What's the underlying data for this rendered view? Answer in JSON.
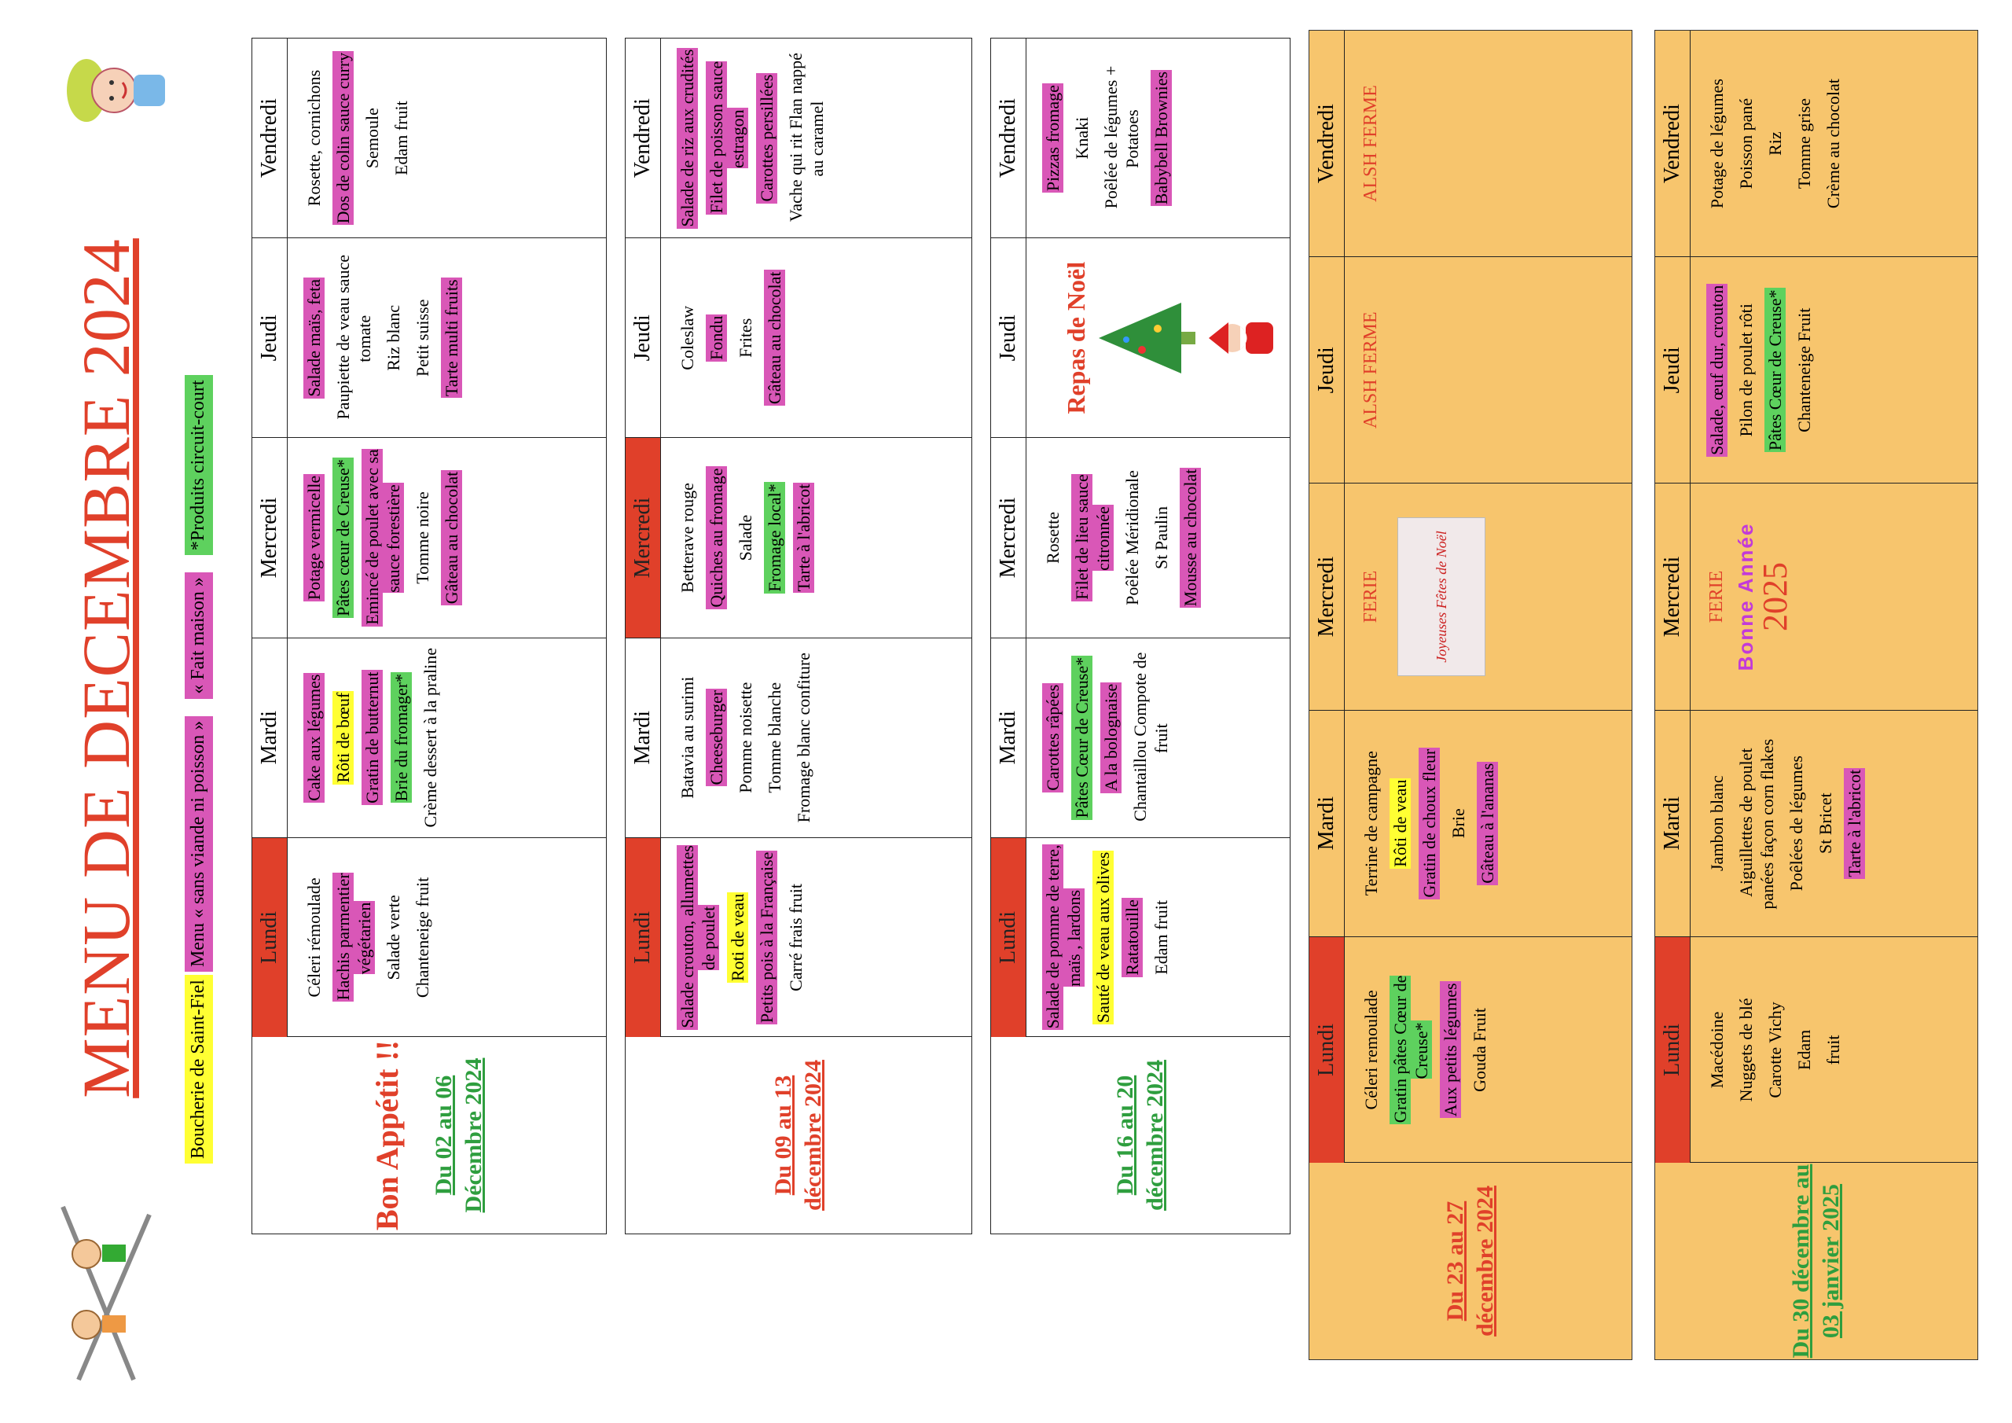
{
  "header": {
    "title": "MENU DE DECEMBRE 2024",
    "legend": [
      {
        "text": "Boucherie de Saint-Fiel",
        "color": "yellow"
      },
      {
        "text": "Menu « sans viande ni poisson »",
        "color": "pink"
      },
      {
        "text": "« Fait maison »",
        "color": "pink"
      },
      {
        "text": "*Produits circuit-court",
        "color": "green"
      }
    ],
    "bon_appetit": "Bon Appétit !!"
  },
  "days": [
    "Lundi",
    "Mardi",
    "Mercredi",
    "Jeudi",
    "Vendredi"
  ],
  "weeks": [
    {
      "dates": "Du 02 au 06 Décembre 2024",
      "color": "green",
      "lundi": [
        {
          "text": "Céleri rémoulade",
          "hl": ""
        },
        {
          "text": "Hachis parmentier végétarien",
          "hl": "pink"
        },
        {
          "text": "Salade verte",
          "hl": ""
        },
        {
          "text": "Chanteneige fruit",
          "hl": ""
        }
      ],
      "mardi": [
        {
          "text": "Cake aux légumes",
          "hl": "pink"
        },
        {
          "text": "Rôti de bœuf",
          "hl": "yellow"
        },
        {
          "text": "Gratin de butternut",
          "hl": "pink"
        },
        {
          "text": "Brie du fromager*",
          "hl": "green"
        },
        {
          "text": "Crème dessert à la praline",
          "hl": ""
        }
      ],
      "mercredi": [
        {
          "text": "Potage vermicelle",
          "hl": "pink"
        },
        {
          "text": "Pâtes cœur de Creuse*",
          "hl": "green"
        },
        {
          "text": "Emincé de poulet avec sa sauce forestière",
          "hl": "pink"
        },
        {
          "text": "Tomme noire",
          "hl": ""
        },
        {
          "text": "Gâteau au chocolat",
          "hl": "pink"
        }
      ],
      "jeudi": [
        {
          "text": "Salade maïs, feta",
          "hl": "pink"
        },
        {
          "text": "Paupiette de veau sauce tomate",
          "hl": ""
        },
        {
          "text": "Riz blanc",
          "hl": ""
        },
        {
          "text": "Petit suisse",
          "hl": ""
        },
        {
          "text": "Tarte multi fruits",
          "hl": "pink"
        }
      ],
      "vendredi": [
        {
          "text": "Rosette, cornichons",
          "hl": ""
        },
        {
          "text": "Dos de colin sauce curry",
          "hl": "pink"
        },
        {
          "text": "Semoule",
          "hl": ""
        },
        {
          "text": "Edam fruit",
          "hl": ""
        }
      ]
    },
    {
      "dates": "Du 09 au 13 décembre 2024",
      "color": "red",
      "lundi": [
        {
          "text": "Salade crouton, allumettes de poulet",
          "hl": "pink"
        },
        {
          "text": "Roti de veau",
          "hl": "yellow"
        },
        {
          "text": "Petits pois à la Française",
          "hl": "pink"
        },
        {
          "text": "Carré frais fruit",
          "hl": ""
        }
      ],
      "mardi": [
        {
          "text": "Batavia au surimi",
          "hl": ""
        },
        {
          "text": "Cheeseburger",
          "hl": "pink"
        },
        {
          "text": "Pomme noisette",
          "hl": ""
        },
        {
          "text": "Tomme blanche",
          "hl": ""
        },
        {
          "text": "Fromage blanc confiture",
          "hl": ""
        }
      ],
      "mercredi": [
        {
          "text": "Betterave rouge",
          "hl": ""
        },
        {
          "text": "Quiches au fromage",
          "hl": "pink"
        },
        {
          "text": "Salade",
          "hl": ""
        },
        {
          "text": "Fromage local*",
          "hl": "green"
        },
        {
          "text": "Tarte à l'abricot",
          "hl": "pink"
        }
      ],
      "jeudi": [
        {
          "text": "Coleslaw",
          "hl": ""
        },
        {
          "text": "Fondu",
          "hl": "pink"
        },
        {
          "text": "Frites",
          "hl": ""
        },
        {
          "text": "Gâteau au chocolat",
          "hl": "pink"
        }
      ],
      "vendredi": [
        {
          "text": "Salade de riz aux crudités",
          "hl": "pink"
        },
        {
          "text": "Filet de poisson sauce estragon",
          "hl": "pink"
        },
        {
          "text": "Carottes persillées",
          "hl": "pink"
        },
        {
          "text": "Vache qui rit Flan nappé au caramel",
          "hl": ""
        }
      ]
    },
    {
      "dates": "Du 16 au 20 décembre 2024",
      "color": "green",
      "lundi": [
        {
          "text": "Salade de pomme de terre, maïs , lardons",
          "hl": "pink"
        },
        {
          "text": "Sauté de veau aux olives",
          "hl": "yellow"
        },
        {
          "text": "Ratatouille",
          "hl": "pink"
        },
        {
          "text": "Edam fruit",
          "hl": ""
        }
      ],
      "mardi": [
        {
          "text": "Carottes râpées",
          "hl": "pink"
        },
        {
          "text": "Pâtes Cœur de Creuse*",
          "hl": "green"
        },
        {
          "text": "A la bolognaise",
          "hl": "pink"
        },
        {
          "text": "Chantaillou Compote de fruit",
          "hl": ""
        }
      ],
      "mercredi": [
        {
          "text": "Rosette",
          "hl": ""
        },
        {
          "text": "Filet de lieu sauce citronnée",
          "hl": "pink"
        },
        {
          "text": "Poêlée Méridionale",
          "hl": ""
        },
        {
          "text": "St Paulin",
          "hl": ""
        },
        {
          "text": "Mousse au chocolat",
          "hl": "pink"
        }
      ],
      "jeudi": [
        {
          "text": "Repas de Noël",
          "hl": "noel"
        }
      ],
      "vendredi": [
        {
          "text": "Pizzas fromage",
          "hl": "pink"
        },
        {
          "text": "Knaki",
          "hl": ""
        },
        {
          "text": "Poêlée de légumes + Potatoes",
          "hl": ""
        },
        {
          "text": "Babybell Brownies",
          "hl": "pink"
        }
      ]
    },
    {
      "dates": "Du 23 au 27 décembre 2024",
      "color": "red",
      "lundi": [
        {
          "text": "Céleri remoulade",
          "hl": ""
        },
        {
          "text": "Gratin pâtes Cœur de Creuse*",
          "hl": "green"
        },
        {
          "text": "Aux petits légumes",
          "hl": "pink"
        },
        {
          "text": "Gouda Fruit",
          "hl": ""
        }
      ],
      "mardi": [
        {
          "text": "Terrine de campagne",
          "hl": ""
        },
        {
          "text": "Rôti de veau",
          "hl": "yellow"
        },
        {
          "text": "Gratin de choux fleur",
          "hl": "pink"
        },
        {
          "text": "Brie",
          "hl": ""
        },
        {
          "text": "Gâteau à l'ananas",
          "hl": "pink"
        }
      ],
      "mercredi": [
        {
          "text": "FERIE",
          "hl": "closed"
        },
        {
          "text": "Joyeuses Fêtes de Noël",
          "hl": "card"
        }
      ],
      "jeudi": [
        {
          "text": "ALSH FERME",
          "hl": "closed"
        }
      ],
      "vendredi": [
        {
          "text": "ALSH FERME",
          "hl": "closed"
        }
      ]
    },
    {
      "dates": "Du 30 décembre au 03 janvier 2025",
      "color": "green",
      "lundi": [
        {
          "text": "Macédoine",
          "hl": ""
        },
        {
          "text": "Nuggets de blé",
          "hl": ""
        },
        {
          "text": "Carotte Vichy",
          "hl": ""
        },
        {
          "text": "Edam",
          "hl": ""
        },
        {
          "text": "fruit",
          "hl": ""
        }
      ],
      "mardi": [
        {
          "text": "Jambon blanc",
          "hl": ""
        },
        {
          "text": "Aiguillettes de poulet panées façon corn flakes",
          "hl": ""
        },
        {
          "text": "Poêlées de légumes",
          "hl": ""
        },
        {
          "text": "St Bricet",
          "hl": ""
        },
        {
          "text": "Tarte à l'abricot",
          "hl": "pink"
        }
      ],
      "mercredi": [
        {
          "text": "FERIE",
          "hl": "closed"
        },
        {
          "text": "Bonne Année",
          "hl": "bonne"
        },
        {
          "text": "2025",
          "hl": "year"
        }
      ],
      "jeudi": [
        {
          "text": "Salade, œuf dur, crouton",
          "hl": "pink"
        },
        {
          "text": "Pilon de poulet rôti",
          "hl": ""
        },
        {
          "text": "Pâtes Cœur de Creuse*",
          "hl": "green"
        },
        {
          "text": "Chanteneige Fruit",
          "hl": ""
        }
      ],
      "vendredi": [
        {
          "text": "Potage de légumes",
          "hl": ""
        },
        {
          "text": "Poisson pané",
          "hl": ""
        },
        {
          "text": "Riz",
          "hl": ""
        },
        {
          "text": "Tomme grise",
          "hl": ""
        },
        {
          "text": "Crème au chocolat",
          "hl": ""
        }
      ]
    }
  ],
  "colors": {
    "accent_red": "#e0402a",
    "label_green": "#2e9e3e",
    "pink": "#d957b7",
    "yellow": "#ffff33",
    "green": "#5ed15e",
    "orange_week": "#f7c56d"
  },
  "icons": [
    "chef-mascot-icon",
    "children-fork-icon",
    "christmas-tree-icon",
    "santa-icon",
    "holly-ornament-icon",
    "snowman-card-icon",
    "baubles-icon"
  ]
}
